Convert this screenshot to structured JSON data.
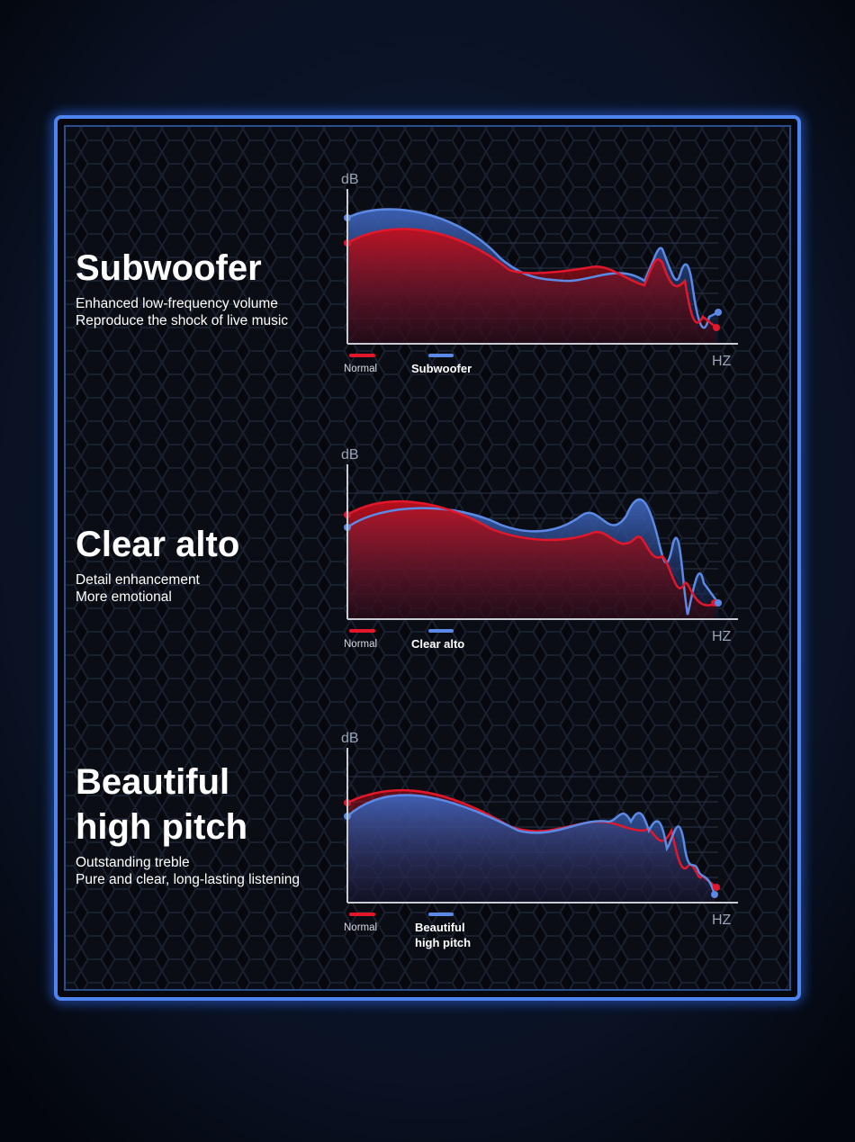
{
  "sections": [
    {
      "title": [
        "Subwoofer"
      ],
      "lines": [
        "Enhanced low-frequency volume",
        "Reproduce the shock of live music"
      ],
      "y_axis": "dB",
      "x_axis": "HZ",
      "legend": {
        "normal": "Normal",
        "effect": [
          "Subwoofer"
        ]
      }
    },
    {
      "title": [
        "Clear alto"
      ],
      "lines": [
        "Detail enhancement",
        "More emotional"
      ],
      "y_axis": "dB",
      "x_axis": "HZ",
      "legend": {
        "normal": "Normal",
        "effect": [
          "Clear alto"
        ]
      }
    },
    {
      "title": [
        "Beautiful",
        "high pitch"
      ],
      "lines": [
        "Outstanding treble",
        "Pure and clear, long-lasting listening"
      ],
      "y_axis": "dB",
      "x_axis": "HZ",
      "legend": {
        "normal": "Normal",
        "effect": [
          "Beautiful",
          "high pitch"
        ]
      }
    }
  ]
}
